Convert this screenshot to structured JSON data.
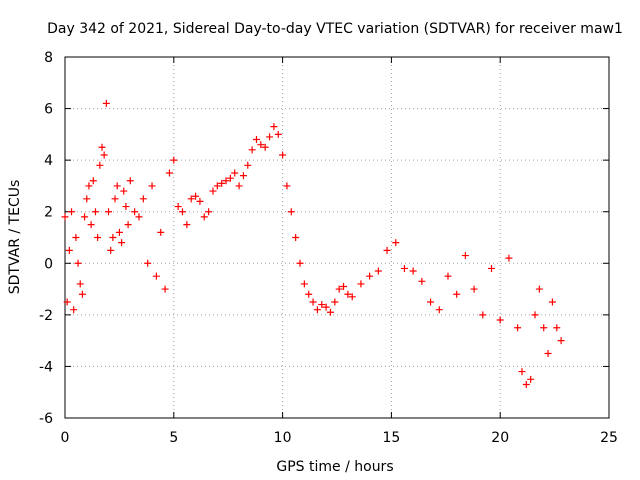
{
  "chart_data": {
    "type": "scatter",
    "title": "Day 342 of 2021, Sidereal Day-to-day VTEC variation (SDTVAR) for receiver maw1",
    "xlabel": "GPS time / hours",
    "ylabel": "SDTVAR / TECUs",
    "xlim": [
      0,
      25
    ],
    "ylim": [
      -6,
      8
    ],
    "xticks": [
      "0",
      "5",
      "10",
      "15",
      "20",
      "25"
    ],
    "yticks": [
      "-6",
      "-4",
      "-2",
      "0",
      "2",
      "4",
      "6",
      "8"
    ],
    "grid": true,
    "marker": "+",
    "series": [
      {
        "name": "maw1",
        "color": "#ff0000",
        "x": [
          0.0,
          0.1,
          0.2,
          0.3,
          0.4,
          0.5,
          0.6,
          0.7,
          0.8,
          0.9,
          1.0,
          1.1,
          1.2,
          1.3,
          1.4,
          1.5,
          1.6,
          1.7,
          1.8,
          1.9,
          2.0,
          2.1,
          2.2,
          2.3,
          2.4,
          2.5,
          2.6,
          2.7,
          2.8,
          2.9,
          3.0,
          3.2,
          3.4,
          3.6,
          3.8,
          4.0,
          4.2,
          4.4,
          4.6,
          4.8,
          5.0,
          5.2,
          5.4,
          5.6,
          5.8,
          6.0,
          6.2,
          6.4,
          6.6,
          6.8,
          7.0,
          7.2,
          7.4,
          7.6,
          7.8,
          8.0,
          8.2,
          8.4,
          8.6,
          8.8,
          9.0,
          9.2,
          9.4,
          9.6,
          9.8,
          10.0,
          10.2,
          10.4,
          10.6,
          10.8,
          11.0,
          11.2,
          11.4,
          11.6,
          11.8,
          12.0,
          12.2,
          12.4,
          12.6,
          12.8,
          13.0,
          13.2,
          13.6,
          14.0,
          14.4,
          14.8,
          15.2,
          15.6,
          16.0,
          16.4,
          16.8,
          17.2,
          17.6,
          18.0,
          18.4,
          18.8,
          19.2,
          19.6,
          20.0,
          20.4,
          20.8,
          21.0,
          21.2,
          21.4,
          21.6,
          21.8,
          22.0,
          22.2,
          22.4,
          22.6,
          22.8
        ],
        "y": [
          1.8,
          -1.5,
          0.5,
          2.0,
          -1.8,
          1.0,
          0.0,
          -0.8,
          -1.2,
          1.8,
          2.5,
          3.0,
          1.5,
          3.2,
          2.0,
          1.0,
          3.8,
          4.5,
          4.2,
          6.2,
          2.0,
          0.5,
          1.0,
          2.5,
          3.0,
          1.2,
          0.8,
          2.8,
          2.2,
          1.5,
          3.2,
          2.0,
          1.8,
          2.5,
          0.0,
          3.0,
          -0.5,
          1.2,
          -1.0,
          3.5,
          4.0,
          2.2,
          2.0,
          1.5,
          2.5,
          2.6,
          2.4,
          1.8,
          2.0,
          2.8,
          3.0,
          3.1,
          3.2,
          3.3,
          3.5,
          3.0,
          3.4,
          3.8,
          4.4,
          4.8,
          4.6,
          4.5,
          4.9,
          5.3,
          5.0,
          4.2,
          3.0,
          2.0,
          1.0,
          0.0,
          -0.8,
          -1.2,
          -1.5,
          -1.8,
          -1.6,
          -1.7,
          -1.9,
          -1.5,
          -1.0,
          -0.9,
          -1.2,
          -1.3,
          -0.8,
          -0.5,
          -0.3,
          0.5,
          0.8,
          -0.2,
          -0.3,
          -0.7,
          -1.5,
          -1.8,
          -0.5,
          -1.2,
          0.3,
          -1.0,
          -2.0,
          -0.2,
          -2.2,
          0.2,
          -2.5,
          -4.2,
          -4.7,
          -4.5,
          -2.0,
          -1.0,
          -2.5,
          -3.5,
          -1.5,
          -2.5,
          -3.0
        ]
      }
    ]
  }
}
